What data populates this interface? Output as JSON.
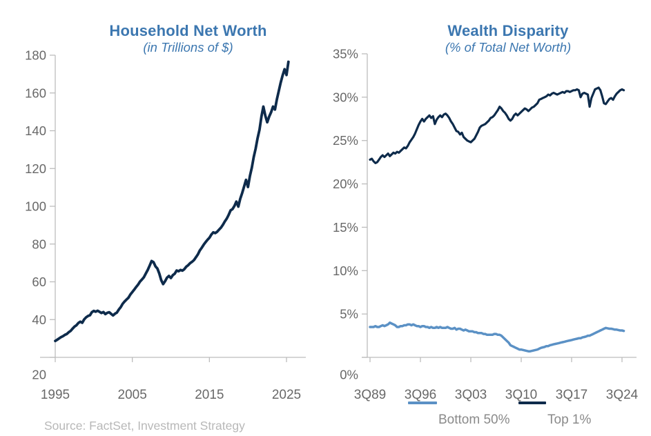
{
  "source_note": "Source: FactSet, Investment Strategy",
  "colors": {
    "title_blue": "#3c77b0",
    "navy": "#0e2b4b",
    "light_blue": "#5b91c5",
    "axis_line": "#bcbcbc",
    "tick_label": "#686868",
    "legend_label": "#8a8a8a",
    "source_gray": "#b8b8b8"
  },
  "chart_data": [
    {
      "type": "line",
      "title": "Household Net Worth",
      "subtitle": "(in Trillions of $)",
      "xlabel": "",
      "ylabel": "Trillions of $",
      "x_start": 1995.0,
      "x_step": 0.25,
      "xlim": [
        1995,
        2025.3
      ],
      "x_ticks": [
        1995,
        2005,
        2015,
        2025
      ],
      "x_tick_labels": [
        "1995",
        "2005",
        "2015",
        "2025"
      ],
      "ylim": [
        20,
        180
      ],
      "y_ticks": [
        180,
        160,
        140,
        120,
        100,
        80,
        60,
        40,
        20
      ],
      "y_tick_labels": [
        "180",
        "160",
        "140",
        "120",
        "100",
        "80",
        "60",
        "40",
        "20"
      ],
      "grid": false,
      "series": [
        {
          "name": "Household Net Worth",
          "color": "navy",
          "values": [
            28.7,
            29.3,
            30.0,
            30.7,
            31.2,
            31.9,
            32.4,
            33.3,
            34.0,
            35.2,
            36.3,
            37.0,
            38.2,
            38.9,
            38.3,
            40.1,
            41.2,
            41.9,
            42.3,
            43.9,
            44.6,
            44.2,
            44.7,
            44.1,
            43.5,
            44.0,
            42.9,
            43.6,
            43.9,
            43.0,
            42.2,
            43.1,
            43.7,
            45.3,
            46.6,
            48.4,
            49.6,
            50.6,
            51.6,
            53.3,
            54.6,
            55.9,
            57.3,
            58.5,
            60.1,
            61.2,
            62.4,
            64.4,
            66.3,
            68.6,
            71.0,
            70.4,
            68.2,
            67.0,
            64.3,
            60.9,
            58.8,
            60.3,
            62.2,
            63.1,
            62.0,
            63.5,
            64.3,
            66.0,
            65.6,
            66.3,
            65.9,
            66.7,
            68.0,
            68.8,
            69.9,
            70.6,
            71.5,
            73.0,
            74.5,
            76.6,
            78.0,
            79.6,
            81.0,
            82.2,
            83.3,
            85.0,
            86.2,
            85.8,
            86.5,
            87.6,
            88.7,
            90.2,
            92.0,
            93.5,
            95.5,
            97.8,
            98.5,
            100.2,
            102.5,
            99.8,
            104.0,
            107.0,
            110.5,
            114.0,
            110.2,
            116.0,
            120.5,
            126.0,
            130.5,
            136.0,
            140.5,
            147.5,
            152.8,
            148.0,
            144.5,
            147.5,
            149.8,
            152.8,
            151.2,
            156.5,
            161.0,
            165.5,
            169.3,
            172.6,
            169.5,
            176.5
          ]
        }
      ]
    },
    {
      "type": "line",
      "title": "Wealth Disparity",
      "subtitle": "(% of Total Net Worth)",
      "xlabel": "",
      "ylabel": "% of Total Net Worth",
      "x_start": 1989.75,
      "x_step": 0.25,
      "xlim": [
        1989.75,
        2025.0
      ],
      "x_ticks": [
        1989.75,
        1996.75,
        2003.75,
        2010.75,
        2017.75,
        2024.75
      ],
      "x_tick_labels": [
        "3Q89",
        "3Q96",
        "3Q03",
        "3Q10",
        "3Q17",
        "3Q24"
      ],
      "ylim": [
        0,
        35
      ],
      "y_ticks": [
        35,
        30,
        25,
        20,
        15,
        10,
        5,
        0
      ],
      "y_tick_labels": [
        "35%",
        "30%",
        "25%",
        "20%",
        "15%",
        "10%",
        "5%",
        "0%"
      ],
      "grid": false,
      "legend_position": "bottom",
      "series": [
        {
          "name": "Bottom 50%",
          "color": "light_blue",
          "values": [
            3.5,
            3.5,
            3.5,
            3.6,
            3.5,
            3.5,
            3.6,
            3.7,
            3.6,
            3.7,
            3.8,
            4.0,
            3.9,
            3.8,
            3.7,
            3.5,
            3.5,
            3.6,
            3.6,
            3.7,
            3.7,
            3.8,
            3.8,
            3.7,
            3.8,
            3.7,
            3.6,
            3.6,
            3.5,
            3.6,
            3.6,
            3.5,
            3.5,
            3.4,
            3.5,
            3.4,
            3.4,
            3.5,
            3.4,
            3.5,
            3.4,
            3.4,
            3.4,
            3.5,
            3.4,
            3.3,
            3.3,
            3.4,
            3.2,
            3.3,
            3.3,
            3.2,
            3.1,
            3.2,
            3.1,
            3.0,
            3.0,
            3.0,
            2.9,
            2.9,
            2.8,
            2.8,
            2.8,
            2.7,
            2.7,
            2.6,
            2.6,
            2.6,
            2.6,
            2.7,
            2.7,
            2.6,
            2.6,
            2.5,
            2.3,
            2.1,
            1.9,
            1.7,
            1.4,
            1.3,
            1.2,
            1.1,
            1.0,
            0.9,
            0.9,
            0.85,
            0.8,
            0.75,
            0.7,
            0.7,
            0.75,
            0.8,
            0.85,
            0.9,
            1.0,
            1.1,
            1.15,
            1.2,
            1.3,
            1.3,
            1.4,
            1.45,
            1.5,
            1.55,
            1.6,
            1.65,
            1.7,
            1.75,
            1.8,
            1.85,
            1.9,
            1.95,
            2.0,
            2.05,
            2.1,
            2.15,
            2.2,
            2.2,
            2.3,
            2.35,
            2.4,
            2.5,
            2.5,
            2.6,
            2.7,
            2.8,
            2.9,
            3.0,
            3.1,
            3.2,
            3.3,
            3.4,
            3.35,
            3.3,
            3.3,
            3.25,
            3.2,
            3.2,
            3.15,
            3.1,
            3.1,
            3.05
          ]
        },
        {
          "name": "Top 1%",
          "color": "navy",
          "values": [
            22.8,
            22.9,
            22.6,
            22.4,
            22.5,
            22.8,
            23.1,
            23.3,
            23.1,
            23.3,
            23.5,
            23.2,
            23.4,
            23.6,
            23.5,
            23.7,
            23.6,
            23.8,
            24.0,
            24.2,
            24.1,
            24.4,
            24.8,
            25.1,
            25.4,
            25.8,
            26.3,
            26.8,
            27.2,
            27.5,
            27.2,
            27.5,
            27.7,
            27.9,
            27.6,
            27.8,
            26.9,
            27.4,
            27.7,
            27.9,
            27.7,
            28.0,
            28.1,
            27.9,
            27.6,
            27.2,
            26.9,
            26.5,
            26.1,
            26.0,
            25.7,
            25.9,
            25.4,
            25.2,
            25.0,
            24.9,
            24.8,
            25.0,
            25.2,
            25.6,
            26.0,
            26.5,
            26.7,
            26.8,
            26.9,
            27.1,
            27.3,
            27.6,
            27.7,
            27.9,
            28.2,
            28.5,
            28.9,
            28.7,
            28.4,
            28.2,
            27.9,
            27.5,
            27.3,
            27.5,
            27.9,
            28.1,
            27.9,
            28.1,
            28.3,
            28.5,
            28.7,
            28.6,
            28.4,
            28.6,
            28.8,
            28.9,
            29.1,
            29.3,
            29.7,
            29.8,
            29.9,
            30.0,
            30.1,
            30.3,
            30.2,
            30.4,
            30.5,
            30.4,
            30.3,
            30.4,
            30.5,
            30.6,
            30.5,
            30.7,
            30.7,
            30.6,
            30.7,
            30.8,
            30.8,
            30.9,
            30.8,
            30.0,
            30.4,
            30.5,
            30.4,
            30.3,
            28.9,
            29.9,
            30.4,
            30.9,
            31.0,
            31.1,
            30.8,
            30.1,
            29.3,
            29.2,
            29.5,
            29.8,
            29.9,
            29.7,
            30.1,
            30.4,
            30.6,
            30.8,
            30.9,
            30.8
          ]
        }
      ]
    }
  ]
}
